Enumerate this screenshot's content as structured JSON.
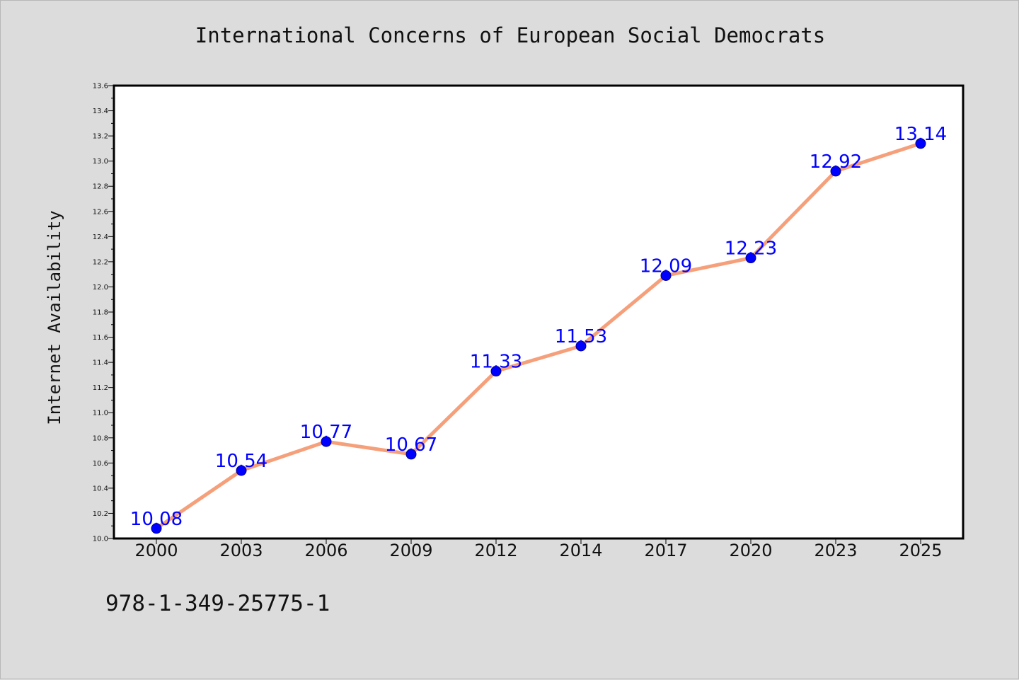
{
  "page": {
    "title": "International Concerns of European Social Democrats",
    "isbn": "978-1-349-25775-1"
  },
  "colors": {
    "background": "#dcdcdc",
    "plot_background": "#ffffff",
    "line": "#f5a07a",
    "marker": "#0000ff",
    "marker_edge": "#00008b",
    "data_label": "#0000ff"
  },
  "chart_data": {
    "type": "line",
    "title": "International Concerns of European Social Democrats",
    "xlabel": "",
    "ylabel": "Internet Availability",
    "categories": [
      "2000",
      "2003",
      "2006",
      "2009",
      "2012",
      "2014",
      "2017",
      "2020",
      "2023",
      "2025"
    ],
    "series": [
      {
        "values": [
          10.08,
          10.54,
          10.77,
          10.67,
          11.33,
          11.53,
          12.09,
          12.23,
          12.92,
          13.14
        ],
        "labels": [
          "10.08",
          "10.54",
          "10.77",
          "10.67",
          "11.33",
          "11.53",
          "12.09",
          "12.23",
          "12.92",
          "13.14"
        ]
      }
    ],
    "ylim": [
      10.0,
      13.6
    ],
    "yticks": [
      "10.0",
      "10.2",
      "10.4",
      "10.6",
      "10.8",
      "11.0",
      "11.2",
      "11.4",
      "11.6",
      "11.8",
      "12.0",
      "12.2",
      "12.4",
      "12.6",
      "12.8",
      "13.0",
      "13.2",
      "13.4",
      "13.6"
    ],
    "grid": false,
    "legend": "none"
  }
}
